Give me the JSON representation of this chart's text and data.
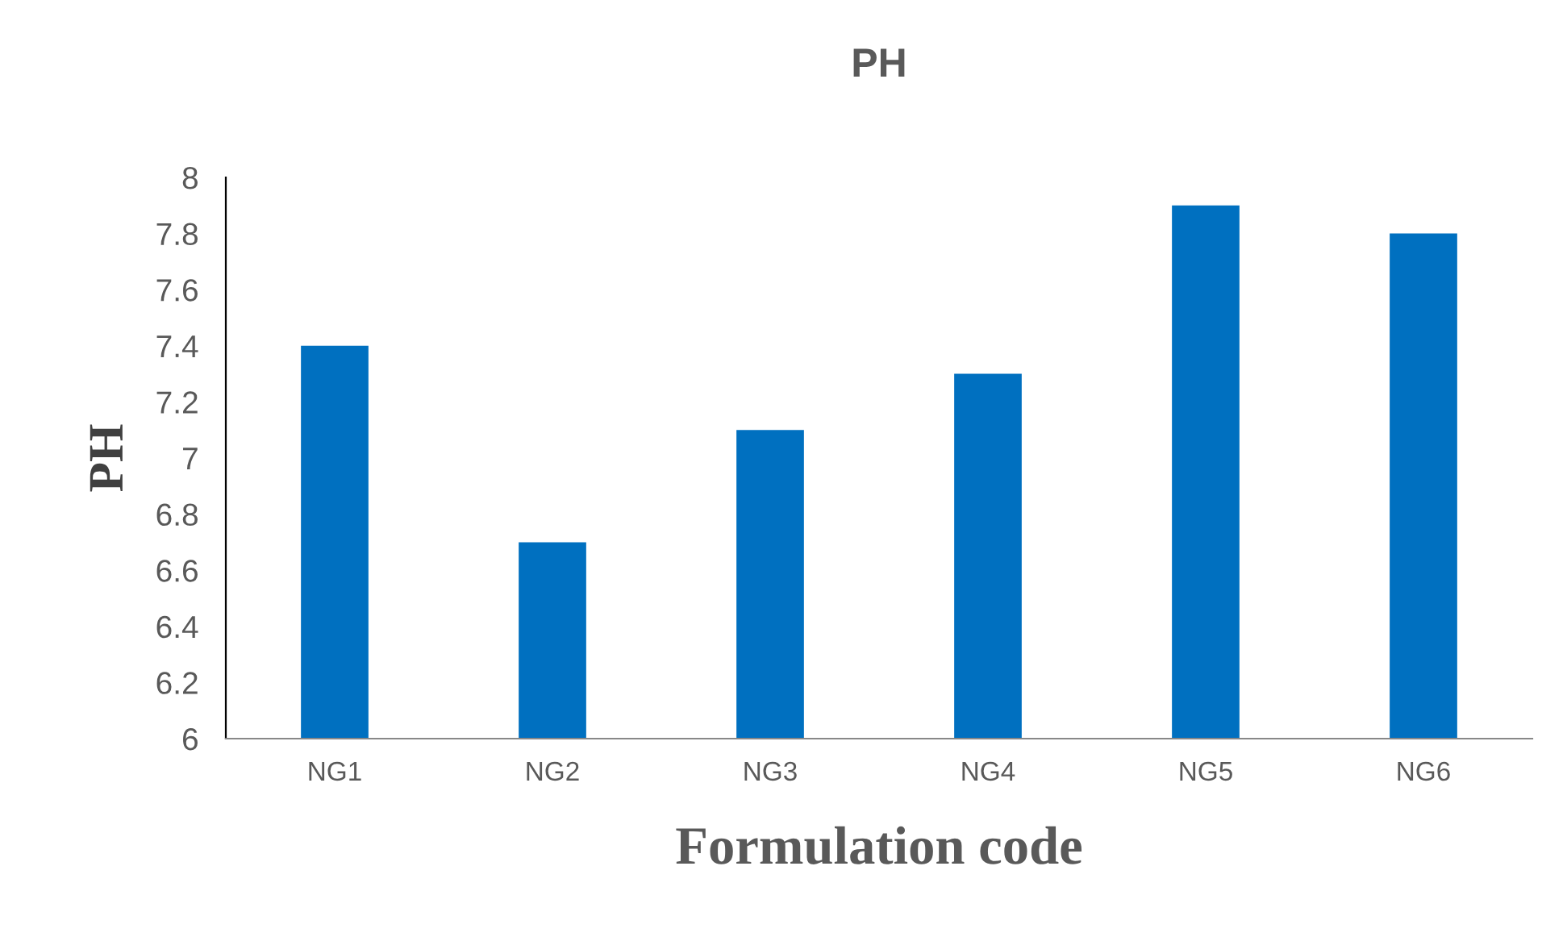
{
  "chart_data": {
    "type": "bar",
    "title": "PH",
    "xlabel": "Formulation code",
    "ylabel": "PH",
    "categories": [
      "NG1",
      "NG2",
      "NG3",
      "NG4",
      "NG5",
      "NG6"
    ],
    "values": [
      7.4,
      6.7,
      7.1,
      7.3,
      7.9,
      7.8
    ],
    "color": "#0070c0",
    "ylim": [
      6,
      8
    ],
    "yticks": [
      6,
      6.2,
      6.4,
      6.6,
      6.8,
      7,
      7.2,
      7.4,
      7.6,
      7.8,
      8
    ],
    "grid": false,
    "legend": false
  }
}
